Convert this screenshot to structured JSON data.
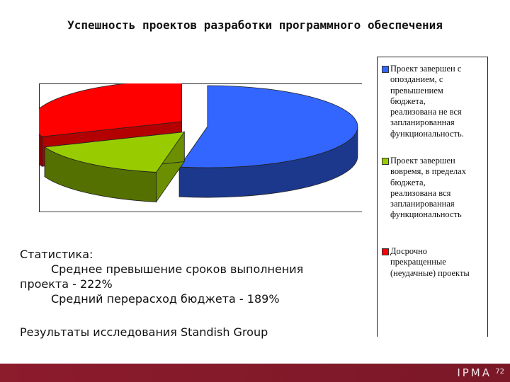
{
  "page": {
    "title": "Успешность проектов разработки программного обеспечения",
    "stats_heading": "Статистика:",
    "stats_line1": "Среднее превышение сроков выполнения",
    "stats_line2": "проекта - 222%",
    "stats_line3": "Средний перерасход бюджета - 189%",
    "source": "Результаты исследования Standish Group",
    "footer_logo": "IPMA",
    "page_number": "72"
  },
  "chart_data": {
    "type": "pie",
    "style": "3d-exploded",
    "legend_position": "right",
    "series": [
      {
        "name": "Проект завершен с опозданием, с превышением бюджета, реализована не вся запланированная функциональность.",
        "value": 53,
        "color": "#3366ff"
      },
      {
        "name": "Проект завершен вовремя, в пределах бюджета, реализована вся запланированная функциональность",
        "value": 16,
        "color": "#99cc00"
      },
      {
        "name": "Досрочно прекращенные (неудачные) проекты",
        "value": 31,
        "color": "#ff0000"
      }
    ]
  },
  "legend": {
    "item1": "Проект завершен с\nопозданием, с\nпревышением\nбюджета,\nреализована не вся\nзапланированная\nфункциональность.",
    "item2": "Проект завершен\nвовремя, в пределах\nбюджета,\nреализована вся\nзапланированная\nфункциональность",
    "item3": "Досрочно\nпрекращенные\n(неудачные) проекты"
  }
}
